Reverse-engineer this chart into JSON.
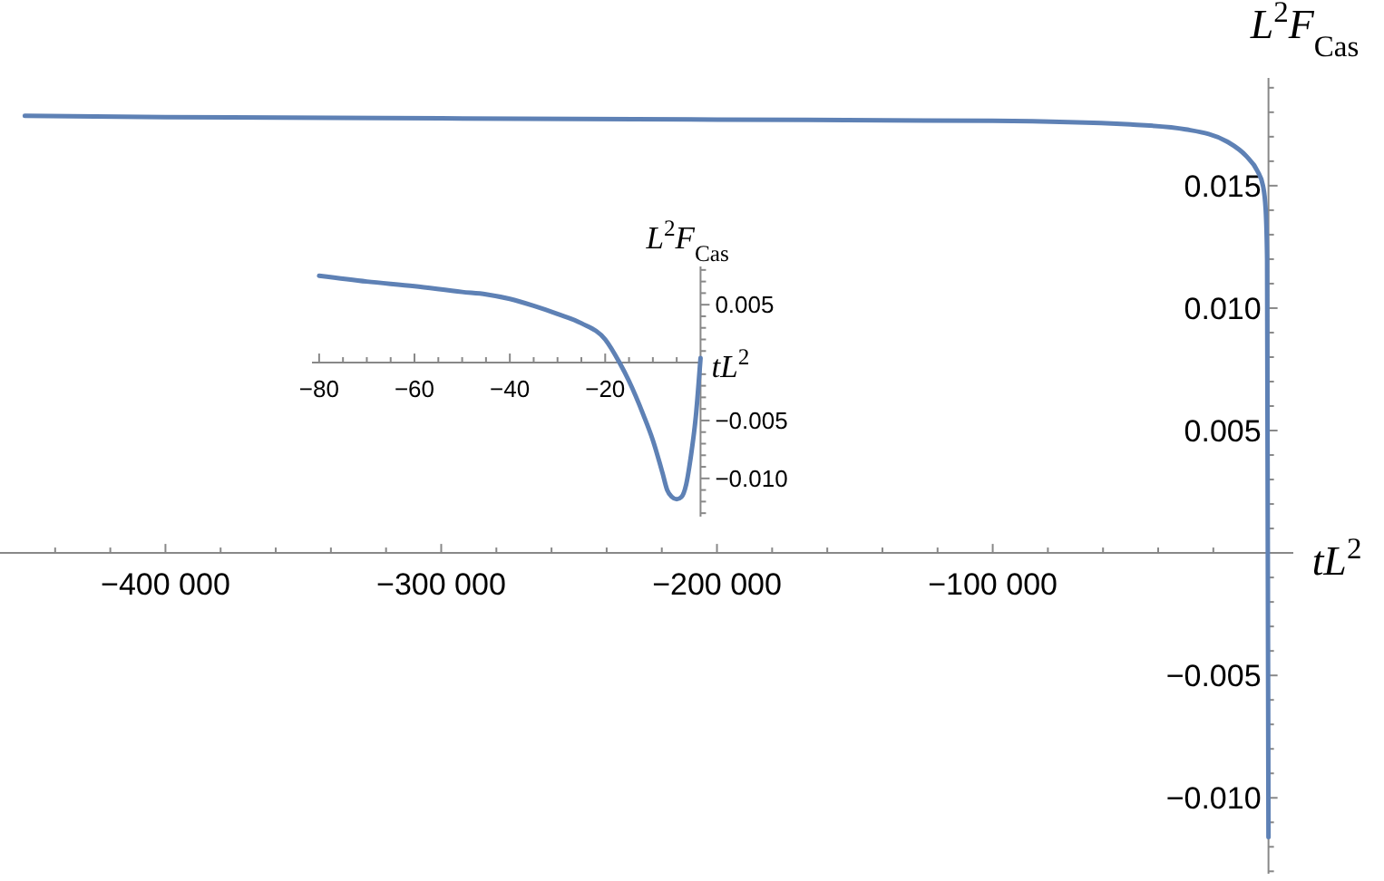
{
  "chart_data": [
    {
      "type": "line",
      "xlabel": "tL$^{2}$",
      "ylabel": "L$^{2}$F$_{Cas}$",
      "xlim": [
        -460000,
        9000
      ],
      "ylim": [
        -0.0131,
        0.0194
      ],
      "xticks": [
        {
          "value": -440000,
          "label": null
        },
        {
          "value": -420000,
          "label": null
        },
        {
          "value": -400000,
          "label": "−400 000"
        },
        {
          "value": -380000,
          "label": null
        },
        {
          "value": -360000,
          "label": null
        },
        {
          "value": -340000,
          "label": null
        },
        {
          "value": -320000,
          "label": null
        },
        {
          "value": -300000,
          "label": "−300 000"
        },
        {
          "value": -280000,
          "label": null
        },
        {
          "value": -260000,
          "label": null
        },
        {
          "value": -240000,
          "label": null
        },
        {
          "value": -220000,
          "label": null
        },
        {
          "value": -200000,
          "label": "−200 000"
        },
        {
          "value": -180000,
          "label": null
        },
        {
          "value": -160000,
          "label": null
        },
        {
          "value": -140000,
          "label": null
        },
        {
          "value": -120000,
          "label": null
        },
        {
          "value": -100000,
          "label": "−100 000"
        },
        {
          "value": -80000,
          "label": null
        },
        {
          "value": -60000,
          "label": null
        },
        {
          "value": -40000,
          "label": null
        },
        {
          "value": -20000,
          "label": null
        }
      ],
      "yticks": [
        {
          "value": -0.013,
          "label": null
        },
        {
          "value": -0.012,
          "label": null
        },
        {
          "value": -0.011,
          "label": null
        },
        {
          "value": -0.01,
          "label": "−0.010"
        },
        {
          "value": -0.009,
          "label": null
        },
        {
          "value": -0.008,
          "label": null
        },
        {
          "value": -0.007,
          "label": null
        },
        {
          "value": -0.006,
          "label": null
        },
        {
          "value": -0.005,
          "label": "−0.005"
        },
        {
          "value": -0.004,
          "label": null
        },
        {
          "value": -0.003,
          "label": null
        },
        {
          "value": -0.002,
          "label": null
        },
        {
          "value": -0.001,
          "label": null
        },
        {
          "value": 0.001,
          "label": null
        },
        {
          "value": 0.002,
          "label": null
        },
        {
          "value": 0.003,
          "label": null
        },
        {
          "value": 0.004,
          "label": null
        },
        {
          "value": 0.005,
          "label": "0.005"
        },
        {
          "value": 0.006,
          "label": null
        },
        {
          "value": 0.007,
          "label": null
        },
        {
          "value": 0.008,
          "label": null
        },
        {
          "value": 0.009,
          "label": null
        },
        {
          "value": 0.01,
          "label": "0.010"
        },
        {
          "value": 0.011,
          "label": null
        },
        {
          "value": 0.012,
          "label": null
        },
        {
          "value": 0.013,
          "label": null
        },
        {
          "value": 0.014,
          "label": null
        },
        {
          "value": 0.015,
          "label": "0.015"
        },
        {
          "value": 0.016,
          "label": null
        },
        {
          "value": 0.017,
          "label": null
        },
        {
          "value": 0.018,
          "label": null
        },
        {
          "value": 0.019,
          "label": null
        }
      ],
      "x": [
        -451000,
        -400000,
        -300000,
        -200000,
        -100000,
        -50000,
        -30000,
        -15000,
        -8000,
        -4000,
        -2000,
        -1000,
        -500,
        0
      ],
      "series": [
        {
          "color": "#5e81b5",
          "values": [
            0.01785,
            0.0178,
            0.01775,
            0.0177,
            0.01765,
            0.0175,
            0.0173,
            0.0168,
            0.0162,
            0.0156,
            0.015,
            0.014,
            0.012,
            -0.0116
          ]
        }
      ]
    },
    {
      "type": "line",
      "xlabel": "tL$^{2}$",
      "ylabel": "L$^{2}$F$_{Cas}$",
      "xlim": [
        -81.5,
        0.3
      ],
      "ylim": [
        -0.0133,
        0.0083
      ],
      "xticks": [
        {
          "value": -80,
          "label": "−80"
        },
        {
          "value": -75,
          "label": null
        },
        {
          "value": -70,
          "label": null
        },
        {
          "value": -65,
          "label": null
        },
        {
          "value": -60,
          "label": "−60"
        },
        {
          "value": -55,
          "label": null
        },
        {
          "value": -50,
          "label": null
        },
        {
          "value": -45,
          "label": null
        },
        {
          "value": -40,
          "label": "−40"
        },
        {
          "value": -35,
          "label": null
        },
        {
          "value": -30,
          "label": null
        },
        {
          "value": -25,
          "label": null
        },
        {
          "value": -20,
          "label": "−20"
        },
        {
          "value": -15,
          "label": null
        },
        {
          "value": -10,
          "label": null
        },
        {
          "value": -5,
          "label": null
        }
      ],
      "yticks": [
        {
          "value": -0.013,
          "label": null
        },
        {
          "value": -0.012,
          "label": null
        },
        {
          "value": -0.011,
          "label": null
        },
        {
          "value": -0.01,
          "label": "−0.010"
        },
        {
          "value": -0.009,
          "label": null
        },
        {
          "value": -0.008,
          "label": null
        },
        {
          "value": -0.007,
          "label": null
        },
        {
          "value": -0.006,
          "label": null
        },
        {
          "value": -0.005,
          "label": "−0.005"
        },
        {
          "value": -0.004,
          "label": null
        },
        {
          "value": -0.003,
          "label": null
        },
        {
          "value": -0.002,
          "label": null
        },
        {
          "value": -0.001,
          "label": null
        },
        {
          "value": 0.001,
          "label": null
        },
        {
          "value": 0.002,
          "label": null
        },
        {
          "value": 0.003,
          "label": null
        },
        {
          "value": 0.004,
          "label": null
        },
        {
          "value": 0.005,
          "label": "0.005"
        },
        {
          "value": 0.006,
          "label": null
        },
        {
          "value": 0.007,
          "label": null
        },
        {
          "value": 0.008,
          "label": null
        }
      ],
      "x": [
        -80,
        -70,
        -60,
        -50,
        -45,
        -40,
        -35,
        -30,
        -25,
        -20,
        -17,
        -15,
        -12,
        -10,
        -8,
        -7,
        -6,
        -5,
        -4,
        -3,
        -2,
        -1,
        0
      ],
      "series": [
        {
          "color": "#5e81b5",
          "values": [
            0.0075,
            0.007,
            0.0066,
            0.0061,
            0.0059,
            0.0055,
            0.0049,
            0.0042,
            0.0034,
            0.002,
            0,
            -0.0016,
            -0.0045,
            -0.0067,
            -0.0095,
            -0.011,
            -0.0116,
            -0.0118,
            -0.0116,
            -0.0105,
            -0.008,
            -0.0047,
            0.0004
          ]
        }
      ]
    }
  ]
}
